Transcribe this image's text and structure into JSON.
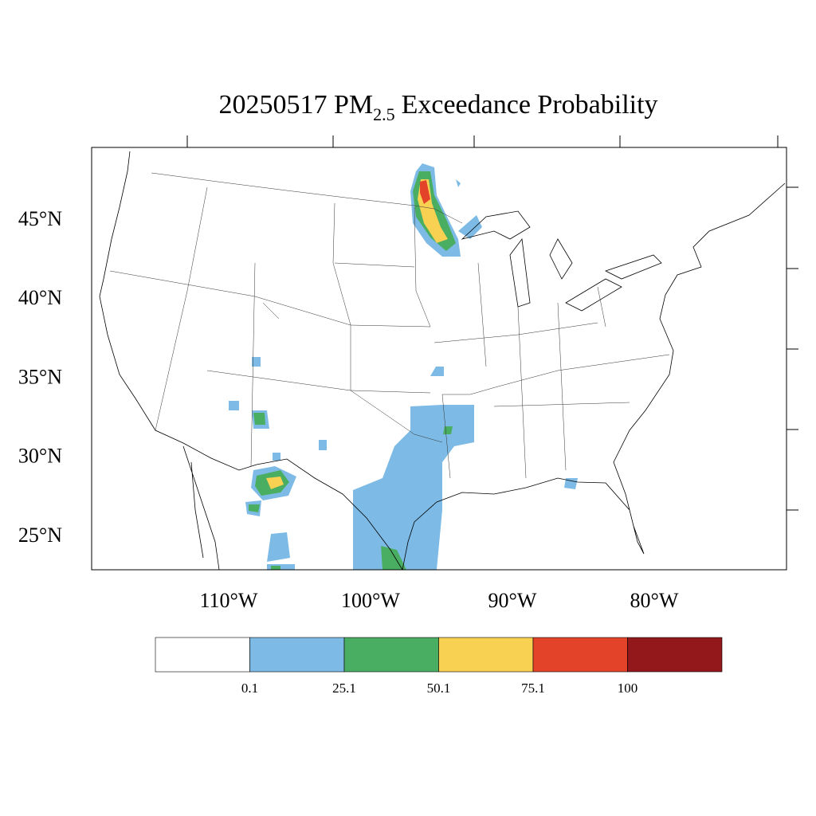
{
  "map": {
    "title": {
      "main": "20250517 PM",
      "subscript": "2.5",
      "rest": "Exceedance Probability"
    },
    "lat_labels": [
      "45°N",
      "40°N",
      "35°N",
      "30°N",
      "25°N"
    ],
    "lon_labels": [
      "110°W",
      "100°W",
      "90°W",
      "80°W"
    ],
    "colorbar": {
      "colors": [
        "#ffffff",
        "#7dbbe6",
        "#4aae62",
        "#f8d052",
        "#e34328",
        "#93181c"
      ],
      "labels": [
        "0.1",
        "25.1",
        "50.1",
        "75.1",
        "100"
      ]
    }
  }
}
